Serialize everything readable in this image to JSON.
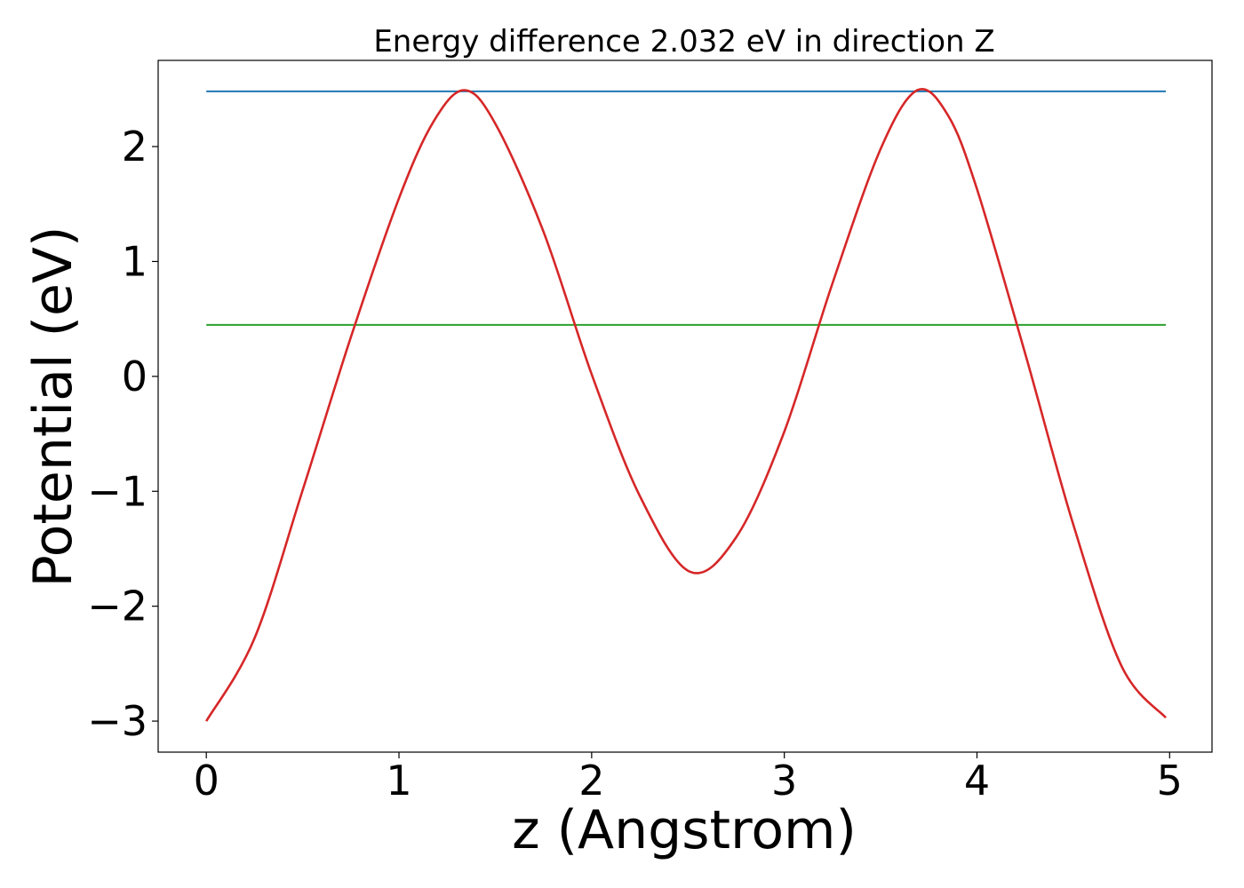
{
  "chart_data": {
    "type": "line",
    "title": "Energy difference 2.032 eV in direction Z",
    "xlabel": "z (Angstrom)",
    "ylabel": "Potential (eV)",
    "xlim": [
      -0.25,
      5.22
    ],
    "ylim": [
      -3.27,
      2.75
    ],
    "xticks": [
      0,
      1,
      2,
      3,
      4,
      5
    ],
    "xtick_labels": [
      "0",
      "1",
      "2",
      "3",
      "4",
      "5"
    ],
    "yticks": [
      -3,
      -2,
      -1,
      0,
      1,
      2
    ],
    "ytick_labels": [
      "−3",
      "−2",
      "−1",
      "0",
      "1",
      "2"
    ],
    "grid": false,
    "legend": "none",
    "series": [
      {
        "color": "#d62728",
        "x": [
          0.0,
          0.25,
          0.5,
          0.75,
          1.0,
          1.18,
          1.34,
          1.5,
          1.75,
          2.0,
          2.25,
          2.51,
          2.75,
          3.0,
          3.25,
          3.5,
          3.69,
          3.85,
          4.0,
          4.25,
          4.5,
          4.75,
          4.98
        ],
        "values": [
          -3.0,
          -2.28,
          -0.99,
          0.34,
          1.55,
          2.22,
          2.49,
          2.2,
          1.26,
          0.02,
          -1.04,
          -1.7,
          -1.4,
          -0.48,
          0.81,
          1.98,
          2.49,
          2.27,
          1.63,
          0.2,
          -1.29,
          -2.52,
          -2.97
        ]
      },
      {
        "color": "#1f77b4",
        "x": [
          0.0,
          4.98
        ],
        "values": [
          2.48,
          2.48
        ]
      },
      {
        "color": "#2ca02c",
        "x": [
          0.0,
          4.98
        ],
        "values": [
          0.448,
          0.448
        ]
      }
    ]
  }
}
